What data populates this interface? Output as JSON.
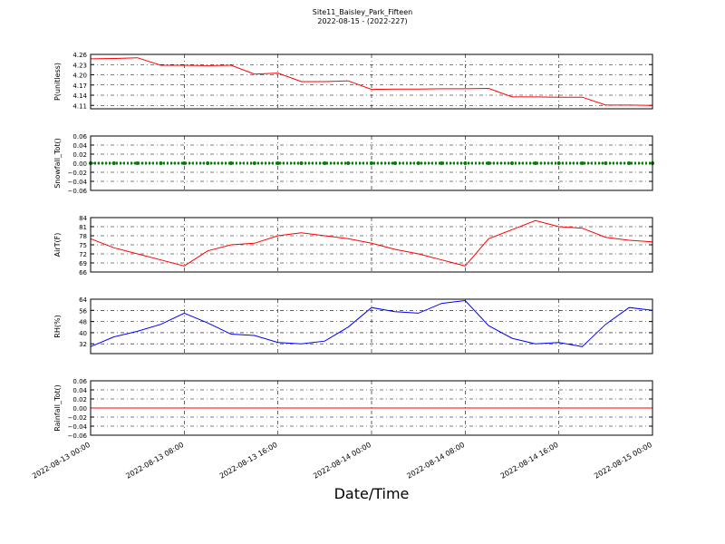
{
  "chart_data": [
    {
      "type": "line",
      "title": "Site11_Baisley_Park_Fifteen",
      "subtitle": "2022-08-15 - (2022-227)",
      "ylabel": "P(unitless)",
      "color": "#ff0000",
      "x": [
        "2022-08-13 00:00",
        "2022-08-13 02:00",
        "2022-08-13 04:00",
        "2022-08-13 06:00",
        "2022-08-13 08:00",
        "2022-08-13 10:00",
        "2022-08-13 12:00",
        "2022-08-13 14:00",
        "2022-08-13 16:00",
        "2022-08-13 18:00",
        "2022-08-13 20:00",
        "2022-08-13 22:00",
        "2022-08-14 00:00",
        "2022-08-14 02:00",
        "2022-08-14 04:00",
        "2022-08-14 06:00",
        "2022-08-14 08:00",
        "2022-08-14 10:00",
        "2022-08-14 12:00",
        "2022-08-14 14:00",
        "2022-08-14 16:00",
        "2022-08-14 18:00",
        "2022-08-14 20:00",
        "2022-08-14 22:00",
        "2022-08-15 00:00"
      ],
      "values": [
        4.247,
        4.248,
        4.25,
        4.228,
        4.228,
        4.227,
        4.228,
        4.202,
        4.205,
        4.18,
        4.18,
        4.182,
        4.157,
        4.158,
        4.158,
        4.159,
        4.159,
        4.16,
        4.135,
        4.135,
        4.134,
        4.134,
        4.111,
        4.111,
        4.11
      ],
      "ylim": [
        4.1,
        4.26
      ],
      "yticks": [
        {
          "value": 4.11,
          "label": "4.11"
        },
        {
          "value": 4.14,
          "label": "4.14"
        },
        {
          "value": 4.17,
          "label": "4.17"
        },
        {
          "value": 4.2,
          "label": "4.20"
        },
        {
          "value": 4.23,
          "label": "4.23"
        },
        {
          "value": 4.26,
          "label": "4.26"
        }
      ],
      "grid": true
    },
    {
      "type": "line",
      "ylabel": "Snowfall_Tot()",
      "color": "#008000",
      "marker": "circle",
      "x": [
        "2022-08-13 00:00",
        "2022-08-13 02:00",
        "2022-08-13 04:00",
        "2022-08-13 06:00",
        "2022-08-13 08:00",
        "2022-08-13 10:00",
        "2022-08-13 12:00",
        "2022-08-13 14:00",
        "2022-08-13 16:00",
        "2022-08-13 18:00",
        "2022-08-13 20:00",
        "2022-08-13 22:00",
        "2022-08-14 00:00",
        "2022-08-14 02:00",
        "2022-08-14 04:00",
        "2022-08-14 06:00",
        "2022-08-14 08:00",
        "2022-08-14 10:00",
        "2022-08-14 12:00",
        "2022-08-14 14:00",
        "2022-08-14 16:00",
        "2022-08-14 18:00",
        "2022-08-14 20:00",
        "2022-08-14 22:00",
        "2022-08-15 00:00"
      ],
      "values": [
        0,
        0,
        0,
        0,
        0,
        0,
        0,
        0,
        0,
        0,
        0,
        0,
        0,
        0,
        0,
        0,
        0,
        0,
        0,
        0,
        0,
        0,
        0,
        0,
        0
      ],
      "ylim": [
        -0.06,
        0.06
      ],
      "yticks": [
        {
          "value": -0.06,
          "label": "−0.06"
        },
        {
          "value": -0.04,
          "label": "−0.04"
        },
        {
          "value": -0.02,
          "label": "−0.02"
        },
        {
          "value": 0,
          "label": "0.00"
        },
        {
          "value": 0.02,
          "label": "0.02"
        },
        {
          "value": 0.04,
          "label": "0.04"
        },
        {
          "value": 0.06,
          "label": "0.06"
        }
      ],
      "grid": true
    },
    {
      "type": "line",
      "ylabel": "AirT(F)",
      "color": "#ff0000",
      "x": [
        "2022-08-13 00:00",
        "2022-08-13 02:00",
        "2022-08-13 04:00",
        "2022-08-13 06:00",
        "2022-08-13 08:00",
        "2022-08-13 10:00",
        "2022-08-13 12:00",
        "2022-08-13 14:00",
        "2022-08-13 16:00",
        "2022-08-13 18:00",
        "2022-08-13 20:00",
        "2022-08-13 22:00",
        "2022-08-14 00:00",
        "2022-08-14 02:00",
        "2022-08-14 04:00",
        "2022-08-14 06:00",
        "2022-08-14 08:00",
        "2022-08-14 10:00",
        "2022-08-14 12:00",
        "2022-08-14 14:00",
        "2022-08-14 16:00",
        "2022-08-14 18:00",
        "2022-08-14 20:00",
        "2022-08-14 22:00",
        "2022-08-15 00:00"
      ],
      "values": [
        77,
        74,
        72,
        70,
        68,
        73,
        75,
        75.5,
        78,
        79,
        78,
        77,
        75.5,
        73.5,
        72,
        70,
        68,
        77,
        80,
        83,
        81,
        80.5,
        77.5,
        76.5,
        76
      ],
      "ylim": [
        66,
        84
      ],
      "yticks": [
        66,
        69,
        72,
        75,
        78,
        81,
        84
      ],
      "grid": true
    },
    {
      "type": "line",
      "ylabel": "RH(%)",
      "color": "#0000ff",
      "x": [
        "2022-08-13 00:00",
        "2022-08-13 02:00",
        "2022-08-13 04:00",
        "2022-08-13 06:00",
        "2022-08-13 08:00",
        "2022-08-13 10:00",
        "2022-08-13 12:00",
        "2022-08-13 14:00",
        "2022-08-13 16:00",
        "2022-08-13 18:00",
        "2022-08-13 20:00",
        "2022-08-13 22:00",
        "2022-08-14 00:00",
        "2022-08-14 02:00",
        "2022-08-14 04:00",
        "2022-08-14 06:00",
        "2022-08-14 08:00",
        "2022-08-14 10:00",
        "2022-08-14 12:00",
        "2022-08-14 14:00",
        "2022-08-14 16:00",
        "2022-08-14 18:00",
        "2022-08-14 20:00",
        "2022-08-14 22:00",
        "2022-08-15 00:00"
      ],
      "values": [
        30,
        37,
        41,
        46,
        54,
        47,
        39,
        38,
        33,
        32,
        34,
        44,
        58,
        55,
        54,
        61,
        63,
        45,
        36,
        32,
        33,
        30,
        46,
        58,
        56
      ],
      "ylim": [
        25,
        64
      ],
      "yticks": [
        32,
        40,
        48,
        56,
        64
      ],
      "grid": true
    },
    {
      "type": "line",
      "ylabel": "Rainfall_Tot()",
      "color": "#ff0000",
      "xlabel": "Date/Time",
      "x": [
        "2022-08-13 00:00",
        "2022-08-13 02:00",
        "2022-08-13 04:00",
        "2022-08-13 06:00",
        "2022-08-13 08:00",
        "2022-08-13 10:00",
        "2022-08-13 12:00",
        "2022-08-13 14:00",
        "2022-08-13 16:00",
        "2022-08-13 18:00",
        "2022-08-13 20:00",
        "2022-08-13 22:00",
        "2022-08-14 00:00",
        "2022-08-14 02:00",
        "2022-08-14 04:00",
        "2022-08-14 06:00",
        "2022-08-14 08:00",
        "2022-08-14 10:00",
        "2022-08-14 12:00",
        "2022-08-14 14:00",
        "2022-08-14 16:00",
        "2022-08-14 18:00",
        "2022-08-14 20:00",
        "2022-08-14 22:00",
        "2022-08-15 00:00"
      ],
      "values": [
        0,
        0,
        0,
        0,
        0,
        0,
        0,
        0,
        0,
        0,
        0,
        0,
        0,
        0,
        0,
        0,
        0,
        0,
        0,
        0,
        0,
        0,
        0,
        0,
        0
      ],
      "ylim": [
        -0.06,
        0.06
      ],
      "yticks": [
        {
          "value": -0.06,
          "label": "−0.06"
        },
        {
          "value": -0.04,
          "label": "−0.04"
        },
        {
          "value": -0.02,
          "label": "−0.02"
        },
        {
          "value": 0,
          "label": "0.00"
        },
        {
          "value": 0.02,
          "label": "0.02"
        },
        {
          "value": 0.04,
          "label": "0.04"
        },
        {
          "value": 0.06,
          "label": "0.06"
        }
      ],
      "grid": true,
      "xlim": [
        "2022-08-13 00:00",
        "2022-08-15 00:00"
      ],
      "xticks": [
        "2022-08-13 00:00",
        "2022-08-13 08:00",
        "2022-08-13 16:00",
        "2022-08-14 00:00",
        "2022-08-14 08:00",
        "2022-08-14 16:00",
        "2022-08-15 00:00"
      ]
    }
  ]
}
